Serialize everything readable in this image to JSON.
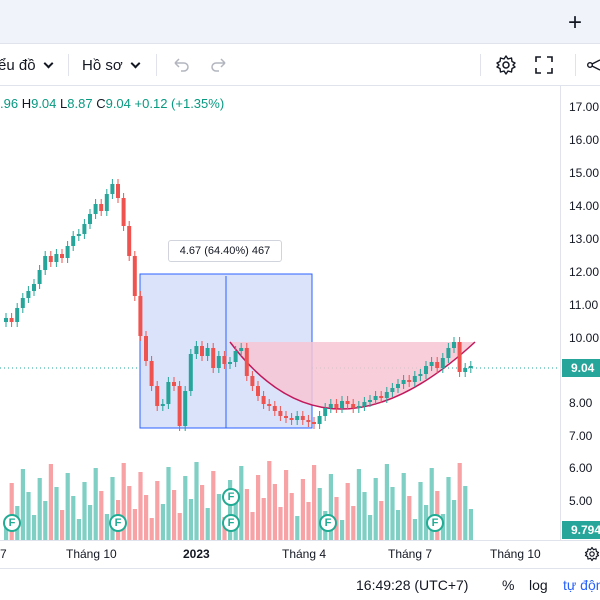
{
  "tabbar": {
    "add_icon": "plus-icon",
    "add_label": "+"
  },
  "toolbar": {
    "chart_type_label": "ểu đồ",
    "profile_label": "Hồ sơ",
    "undo_icon": "undo-icon",
    "redo_icon": "redo-icon",
    "settings_icon": "gear-icon",
    "fullscreen_icon": "fullscreen-icon",
    "share_icon": "share-icon"
  },
  "ohlc": {
    "open_value": ".96",
    "high_key": "H",
    "high_value": "9.04",
    "low_key": "L",
    "low_value": "8.87",
    "close_key": "C",
    "close_value": "9.04",
    "change": "+0.12 (+1.35%)"
  },
  "price_axis": {
    "labels": [
      "17.00",
      "16.00",
      "15.00",
      "14.00",
      "13.00",
      "12.00",
      "11.00",
      "10.00",
      "8.00",
      "7.00",
      "6.00",
      "5.00"
    ],
    "current_price": "9.04",
    "current_volume": "9.794"
  },
  "time_axis": {
    "labels": [
      "7",
      "Tháng 10",
      "2023",
      "Tháng 4",
      "Tháng 7",
      "Tháng 10"
    ],
    "settings_icon": "gear-icon"
  },
  "measure": {
    "label": "4.67 (64.40%) 467"
  },
  "events": {
    "badge_label": "F"
  },
  "statusbar": {
    "time": "16:49:28 (UTC+7)",
    "percent": "%",
    "log": "log",
    "auto": "tự độn"
  },
  "colors": {
    "up": "#26a69a",
    "down": "#ef5350",
    "up_volume": "#7fcfc4",
    "down_volume": "#f7a3a6",
    "range_fill": "#dbe3fb",
    "pattern_fill": "#f6c5d3",
    "pattern_line": "#c2185b"
  }
}
